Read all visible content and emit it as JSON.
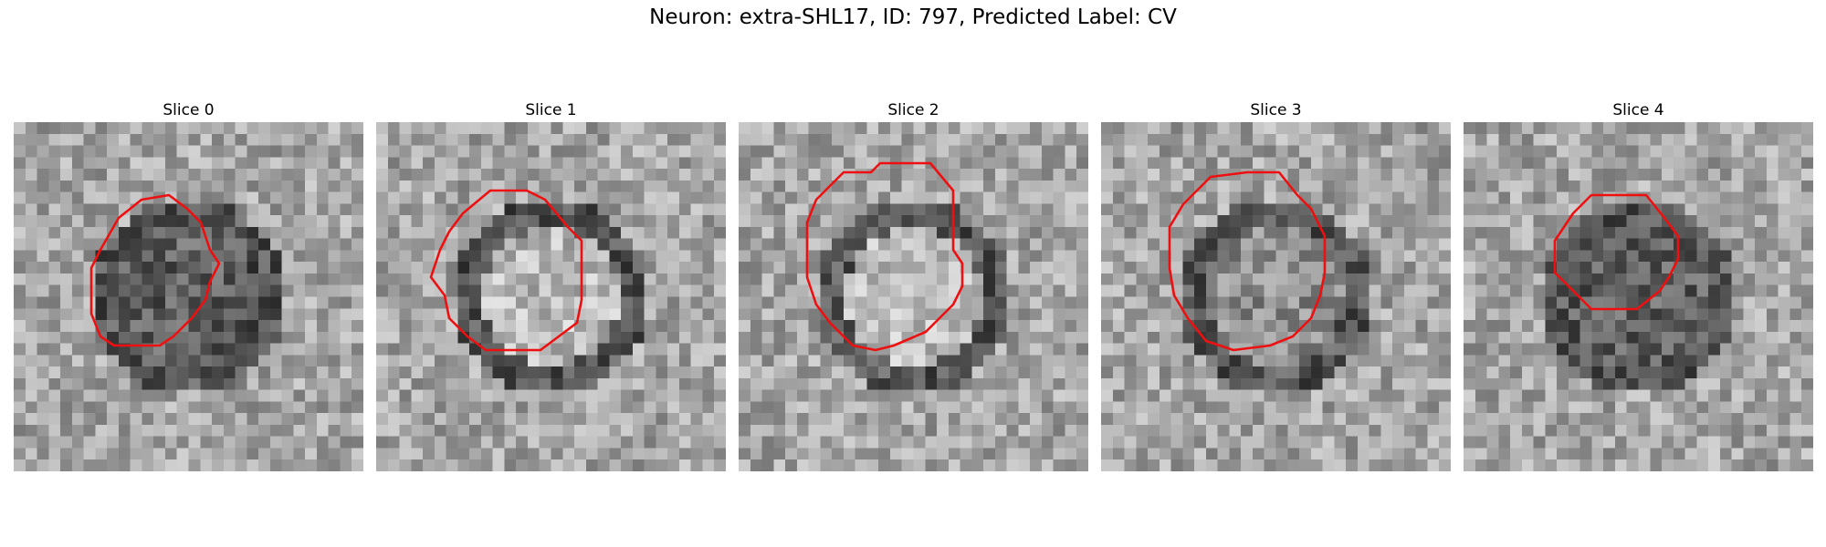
{
  "figure": {
    "title": "Neuron: extra-SHL17, ID: 797, Predicted Label: CV"
  },
  "slices": [
    {
      "title": "Slice 0",
      "interior": "dark",
      "seed": 11
    },
    {
      "title": "Slice 1",
      "interior": "light",
      "seed": 23
    },
    {
      "title": "Slice 2",
      "interior": "light",
      "seed": 37
    },
    {
      "title": "Slice 3",
      "interior": "medium",
      "seed": 41
    },
    {
      "title": "Slice 4",
      "interior": "dark",
      "seed": 53
    }
  ],
  "colors": {
    "contour": "#ee1010"
  }
}
